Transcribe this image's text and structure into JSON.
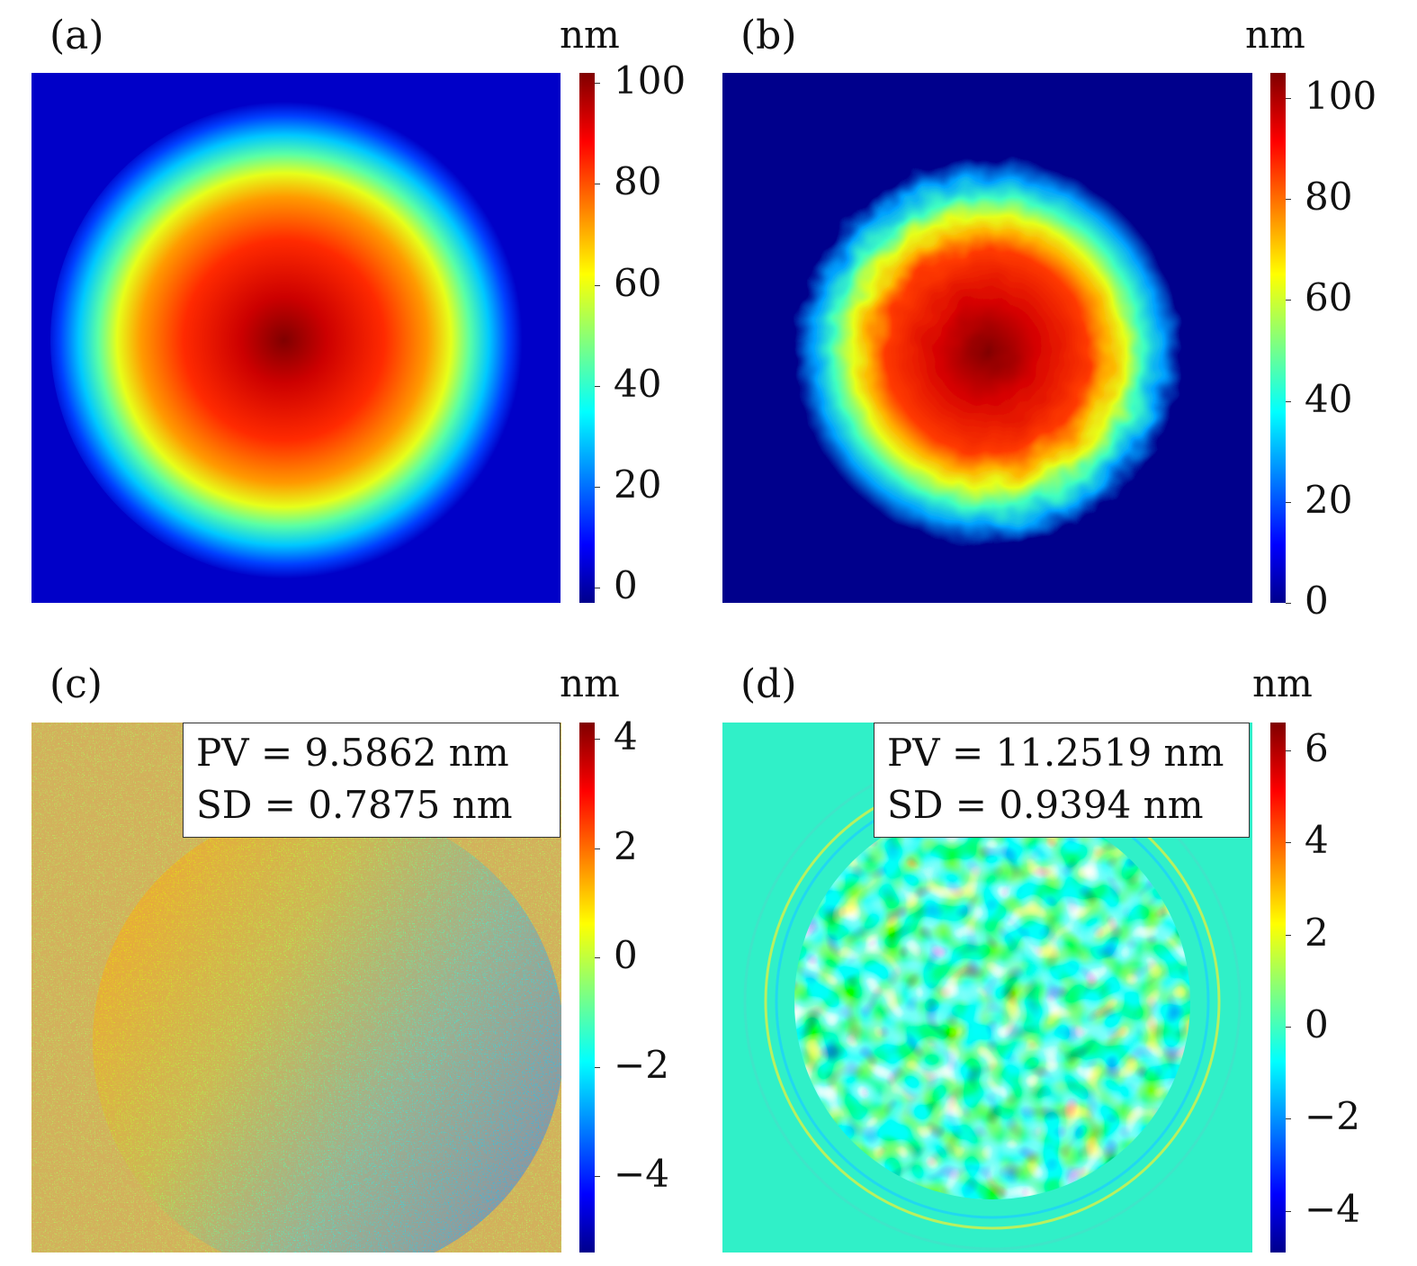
{
  "chart_data": [
    {
      "id": "a",
      "type": "heatmap",
      "panel_label": "(a)",
      "unit": "nm",
      "colormap": "jet",
      "description_values": {
        "center_max": 100,
        "background": 0,
        "shape": "smooth circular dome"
      },
      "colorbar": {
        "min": -3,
        "max": 102,
        "ticks": [
          0,
          20,
          40,
          60,
          80,
          100
        ],
        "tick_labels": [
          "0",
          "20",
          "40",
          "60",
          "80",
          "100"
        ]
      }
    },
    {
      "id": "b",
      "type": "heatmap",
      "panel_label": "(b)",
      "unit": "nm",
      "colormap": "jet",
      "description_values": {
        "center_max": 105,
        "background": 0,
        "shape": "circular dome with rippled top"
      },
      "colorbar": {
        "min": 0,
        "max": 105,
        "ticks": [
          0,
          20,
          40,
          60,
          80,
          100
        ],
        "tick_labels": [
          "0",
          "20",
          "40",
          "60",
          "80",
          "100"
        ]
      }
    },
    {
      "id": "c",
      "type": "heatmap",
      "panel_label": "(c)",
      "unit": "nm",
      "colormap": "jet",
      "annotation": {
        "pv": "PV = 9.5862 nm",
        "sd": "SD = 0.7875 nm"
      },
      "colorbar": {
        "min": -5.4,
        "max": 4.3,
        "ticks": [
          4,
          2,
          0,
          -2,
          -4
        ],
        "tick_labels": [
          "4",
          "2",
          "0",
          "−2",
          "−4"
        ]
      }
    },
    {
      "id": "d",
      "type": "heatmap",
      "panel_label": "(d)",
      "unit": "nm",
      "colormap": "jet",
      "annotation": {
        "pv": "PV = 11.2519 nm",
        "sd": "SD = 0.9394 nm"
      },
      "colorbar": {
        "min": -4.9,
        "max": 6.6,
        "ticks": [
          6,
          4,
          2,
          0,
          -2,
          -4
        ],
        "tick_labels": [
          "6",
          "4",
          "2",
          "0",
          "−2",
          "−4"
        ]
      }
    }
  ]
}
